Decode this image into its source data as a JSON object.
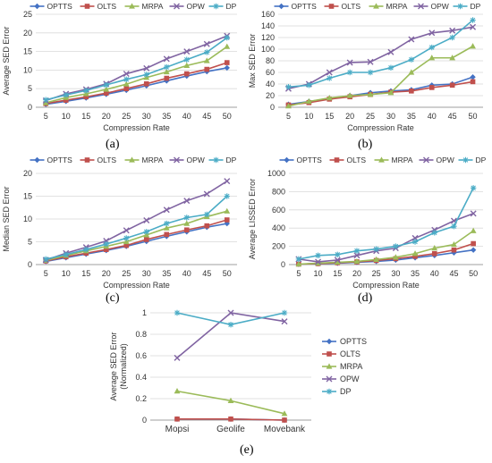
{
  "colors": {
    "OPTTS": "#4472C4",
    "OLTS": "#C0504D",
    "MRPA": "#9BBB59",
    "OPW": "#8064A2",
    "DP": "#4BACC6"
  },
  "markers": {
    "OPTTS": "diamond",
    "OLTS": "square",
    "MRPA": "triangle",
    "OPW": "x",
    "DP": "star"
  },
  "captions": {
    "a": "(a)",
    "b": "(b)",
    "c": "(c)",
    "d": "(d)",
    "e": "(e)"
  },
  "chart_data": [
    {
      "id": "a",
      "type": "line",
      "title": "",
      "xlabel": "Compression Rate",
      "ylabel": "Average SED Error",
      "x": [
        "5",
        "10",
        "15",
        "20",
        "25",
        "30",
        "35",
        "40",
        "45",
        "50"
      ],
      "ylim": [
        0,
        25
      ],
      "yticks": [
        0,
        5,
        10,
        15,
        20,
        25
      ],
      "grid": true,
      "legend": "top",
      "series": [
        {
          "name": "OPTTS",
          "values": [
            0.8,
            1.6,
            2.5,
            3.5,
            4.6,
            5.8,
            7.1,
            8.4,
            9.6,
            10.6
          ]
        },
        {
          "name": "OLTS",
          "values": [
            1.0,
            1.9,
            2.8,
            3.8,
            5.0,
            6.3,
            7.8,
            9.0,
            10.2,
            12.0
          ]
        },
        {
          "name": "MRPA",
          "values": [
            1.2,
            2.6,
            3.6,
            4.8,
            6.2,
            8.0,
            9.5,
            11.2,
            12.5,
            16.3
          ]
        },
        {
          "name": "OPW",
          "values": [
            1.8,
            3.6,
            4.8,
            6.3,
            9.0,
            10.5,
            13.0,
            15.0,
            17.0,
            19.2
          ]
        },
        {
          "name": "DP",
          "values": [
            2.0,
            3.3,
            4.5,
            6.0,
            7.5,
            8.8,
            10.8,
            12.8,
            14.8,
            18.7
          ]
        }
      ]
    },
    {
      "id": "b",
      "type": "line",
      "title": "",
      "xlabel": "Compression Rate",
      "ylabel": "Max SED Error",
      "x": [
        "5",
        "10",
        "15",
        "20",
        "25",
        "30",
        "35",
        "40",
        "45",
        "50"
      ],
      "ylim": [
        0,
        160
      ],
      "yticks": [
        0,
        20,
        40,
        60,
        80,
        100,
        120,
        140,
        160
      ],
      "grid": true,
      "legend": "top",
      "series": [
        {
          "name": "OPTTS",
          "values": [
            5,
            10,
            15,
            20,
            25,
            28,
            30,
            38,
            40,
            52
          ]
        },
        {
          "name": "OLTS",
          "values": [
            4,
            8,
            14,
            18,
            22,
            26,
            28,
            34,
            38,
            44
          ]
        },
        {
          "name": "MRPA",
          "values": [
            2,
            10,
            16,
            20,
            22,
            25,
            60,
            85,
            85,
            105
          ]
        },
        {
          "name": "OPW",
          "values": [
            32,
            40,
            60,
            77,
            78,
            95,
            117,
            128,
            132,
            138
          ]
        },
        {
          "name": "DP",
          "values": [
            35,
            38,
            50,
            60,
            60,
            68,
            82,
            103,
            120,
            150
          ]
        }
      ]
    },
    {
      "id": "c",
      "type": "line",
      "title": "",
      "xlabel": "Compression Rate",
      "ylabel": "Median SED Error",
      "x": [
        "5",
        "10",
        "15",
        "20",
        "25",
        "30",
        "35",
        "40",
        "45",
        "50"
      ],
      "ylim": [
        0,
        20
      ],
      "yticks": [
        0,
        5,
        10,
        15,
        20
      ],
      "grid": true,
      "legend": "top",
      "series": [
        {
          "name": "OPTTS",
          "values": [
            0.7,
            1.5,
            2.3,
            3.1,
            4.0,
            5.1,
            6.2,
            7.2,
            8.2,
            9.0
          ]
        },
        {
          "name": "OLTS",
          "values": [
            0.8,
            1.7,
            2.5,
            3.3,
            4.2,
            5.5,
            6.6,
            7.6,
            8.5,
            9.8
          ]
        },
        {
          "name": "MRPA",
          "values": [
            0.9,
            2.0,
            3.0,
            4.0,
            5.0,
            6.5,
            8.0,
            9.0,
            10.5,
            11.7
          ]
        },
        {
          "name": "OPW",
          "values": [
            1.0,
            2.5,
            3.8,
            5.2,
            7.5,
            9.7,
            12.0,
            14.0,
            15.5,
            18.3
          ]
        },
        {
          "name": "DP",
          "values": [
            1.2,
            2.2,
            3.3,
            4.5,
            5.8,
            7.2,
            9.0,
            10.3,
            11.0,
            15.0
          ]
        }
      ]
    },
    {
      "id": "d",
      "type": "line",
      "title": "",
      "xlabel": "Compression Rate",
      "ylabel": "Average LISSED Error",
      "x": [
        "5",
        "10",
        "15",
        "20",
        "25",
        "30",
        "35",
        "40",
        "45",
        "50"
      ],
      "ylim": [
        0,
        1000
      ],
      "yticks": [
        0,
        200,
        400,
        600,
        800,
        1000
      ],
      "grid": true,
      "legend": "top",
      "series": [
        {
          "name": "OPTTS",
          "values": [
            5,
            10,
            15,
            25,
            35,
            50,
            75,
            100,
            130,
            160
          ]
        },
        {
          "name": "OLTS",
          "values": [
            5,
            10,
            20,
            30,
            45,
            65,
            90,
            120,
            160,
            230
          ]
        },
        {
          "name": "MRPA",
          "values": [
            5,
            15,
            25,
            35,
            55,
            80,
            120,
            180,
            220,
            370
          ]
        },
        {
          "name": "OPW",
          "values": [
            60,
            30,
            50,
            100,
            150,
            180,
            290,
            380,
            480,
            560
          ]
        },
        {
          "name": "DP",
          "values": [
            60,
            100,
            110,
            150,
            170,
            200,
            250,
            350,
            420,
            840
          ]
        }
      ]
    },
    {
      "id": "e",
      "type": "line",
      "title": "",
      "xlabel": "",
      "ylabel": "Average SED Error (Normalized)",
      "x": [
        "Mopsi",
        "Geolife",
        "Movebank"
      ],
      "ylim": [
        0,
        1
      ],
      "yticks": [
        0,
        0.2,
        0.4,
        0.6,
        0.8,
        1
      ],
      "grid": true,
      "legend": "right",
      "series": [
        {
          "name": "OPTTS",
          "values": [
            0.01,
            0.01,
            0.0
          ]
        },
        {
          "name": "OLTS",
          "values": [
            0.01,
            0.01,
            0.0
          ]
        },
        {
          "name": "MRPA",
          "values": [
            0.27,
            0.18,
            0.06
          ]
        },
        {
          "name": "OPW",
          "values": [
            0.58,
            1.0,
            0.92
          ]
        },
        {
          "name": "DP",
          "values": [
            1.0,
            0.89,
            1.0
          ]
        }
      ]
    }
  ]
}
